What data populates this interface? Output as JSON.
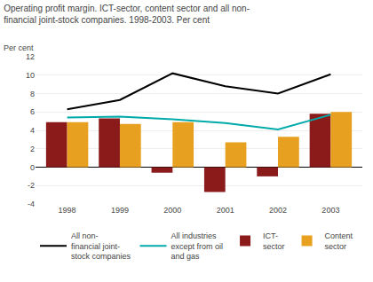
{
  "chart_data": {
    "type": "bar",
    "title": "Operating profit margin. ICT-sector, content sector and all non-\nfinancial joint-stock companies. 1998-2003. Per cent",
    "ylabel": "Per cent",
    "categories": [
      1998,
      1999,
      2000,
      2001,
      2002,
      2003
    ],
    "series": [
      {
        "name": "All non-\nfinancial joint-\nstock companies",
        "type": "line",
        "color": "#000000",
        "values": [
          6.3,
          7.3,
          10.2,
          8.8,
          8.0,
          10.1
        ]
      },
      {
        "name": "All industries\nexcept from oil\nand gas",
        "type": "line",
        "color": "#00AAAA",
        "values": [
          5.4,
          5.5,
          5.2,
          4.8,
          4.1,
          5.7
        ]
      },
      {
        "name": "ICT-\nsector",
        "type": "bar",
        "color": "#8B1A1A",
        "values": [
          4.9,
          5.3,
          -0.6,
          -2.7,
          -1.0,
          5.8
        ]
      },
      {
        "name": "Content\nsector",
        "type": "bar",
        "color": "#E8A020",
        "values": [
          4.9,
          4.7,
          4.9,
          2.7,
          3.3,
          6.0
        ]
      }
    ],
    "ylim": [
      -4,
      12
    ],
    "yticks": [
      -4,
      -2,
      0,
      2,
      4,
      6,
      8,
      10,
      12
    ],
    "grid": true,
    "legend": "bottom"
  }
}
